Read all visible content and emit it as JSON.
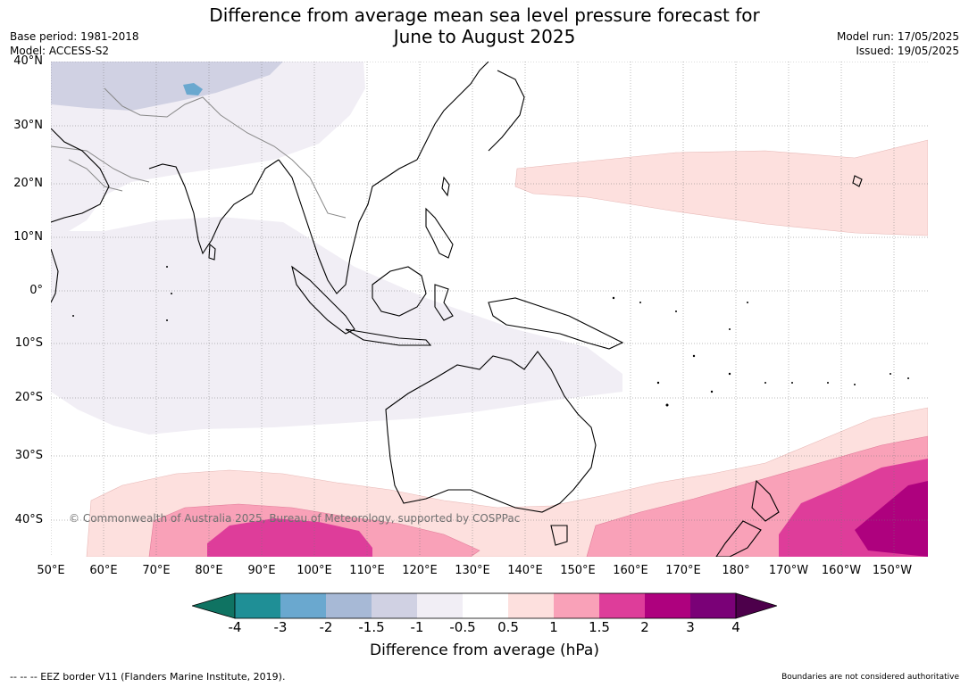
{
  "title_line1": "Difference from average mean sea level pressure forecast for",
  "title_line2": "June to August 2025",
  "base_period": "Base period: 1981-2018",
  "model": "Model: ACCESS-S2",
  "model_run": "Model run: 17/05/2025",
  "issued": "Issued: 19/05/2025",
  "latitude_labels": [
    "40°N",
    "30°N",
    "20°N",
    "10°N",
    "0°",
    "10°S",
    "20°S",
    "30°S",
    "40°S"
  ],
  "longitude_labels": [
    "50°E",
    "60°E",
    "70°E",
    "80°E",
    "90°E",
    "100°E",
    "110°E",
    "120°E",
    "130°E",
    "140°E",
    "150°E",
    "160°E",
    "170°E",
    "180°",
    "170°W",
    "160°W",
    "150°W"
  ],
  "copyright": "© Commonwealth of Australia 2025, Bureau of Meteorology, supported by COSPPac",
  "colorbar": {
    "ticks": [
      "-4",
      "-3",
      "-2",
      "-1.5",
      "-1",
      "-0.5",
      "0.5",
      "1",
      "1.5",
      "2",
      "3",
      "4"
    ],
    "colors": [
      "#0f7362",
      "#1f8f96",
      "#6aa8cf",
      "#a7b9d6",
      "#d0d1e3",
      "#f1eef5",
      "#ffffff",
      "#fde0de",
      "#f9a1b8",
      "#de3d9a",
      "#ae017e",
      "#7a0177",
      "#4d004b"
    ],
    "title": "Difference from average (hPa)"
  },
  "footer_left": "--  --  -- EEZ border V11 (Flanders Marine Institute, 2019).",
  "footer_right": "Boundaries are not considered authoritative"
}
